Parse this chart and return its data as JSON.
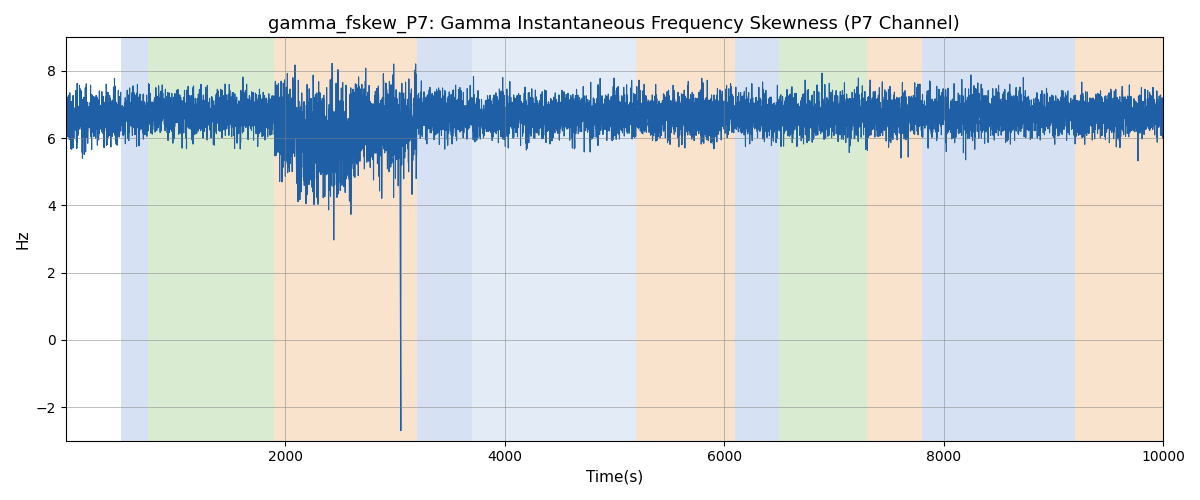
{
  "title": "gamma_fskew_P7: Gamma Instantaneous Frequency Skewness (P7 Channel)",
  "xlabel": "Time(s)",
  "ylabel": "Hz",
  "xlim": [
    0,
    10000
  ],
  "ylim": [
    -3,
    9
  ],
  "yticks": [
    -2,
    0,
    2,
    4,
    6,
    8
  ],
  "xticks": [
    2000,
    4000,
    6000,
    8000,
    10000
  ],
  "line_color": "#1f5fa6",
  "line_width": 0.8,
  "signal_mean": 6.7,
  "signal_std": 0.35,
  "n_points": 10000,
  "seed": 42,
  "background_regions": [
    {
      "xmin": 500,
      "xmax": 750,
      "color": "#aec6e8",
      "alpha": 0.5
    },
    {
      "xmin": 750,
      "xmax": 1900,
      "color": "#b5d9a3",
      "alpha": 0.5
    },
    {
      "xmin": 1900,
      "xmax": 3200,
      "color": "#f5c99a",
      "alpha": 0.5
    },
    {
      "xmin": 3200,
      "xmax": 3700,
      "color": "#aec6e8",
      "alpha": 0.5
    },
    {
      "xmin": 3700,
      "xmax": 5200,
      "color": "#aec6e8",
      "alpha": 0.35
    },
    {
      "xmin": 5200,
      "xmax": 6100,
      "color": "#f5c99a",
      "alpha": 0.5
    },
    {
      "xmin": 6100,
      "xmax": 6500,
      "color": "#aec6e8",
      "alpha": 0.5
    },
    {
      "xmin": 6500,
      "xmax": 7300,
      "color": "#b5d9a3",
      "alpha": 0.5
    },
    {
      "xmin": 7300,
      "xmax": 7800,
      "color": "#f5c99a",
      "alpha": 0.5
    },
    {
      "xmin": 7800,
      "xmax": 9200,
      "color": "#aec6e8",
      "alpha": 0.5
    },
    {
      "xmin": 9200,
      "xmax": 10000,
      "color": "#f5c99a",
      "alpha": 0.5
    }
  ],
  "title_fontsize": 13,
  "label_fontsize": 11,
  "tick_fontsize": 10
}
